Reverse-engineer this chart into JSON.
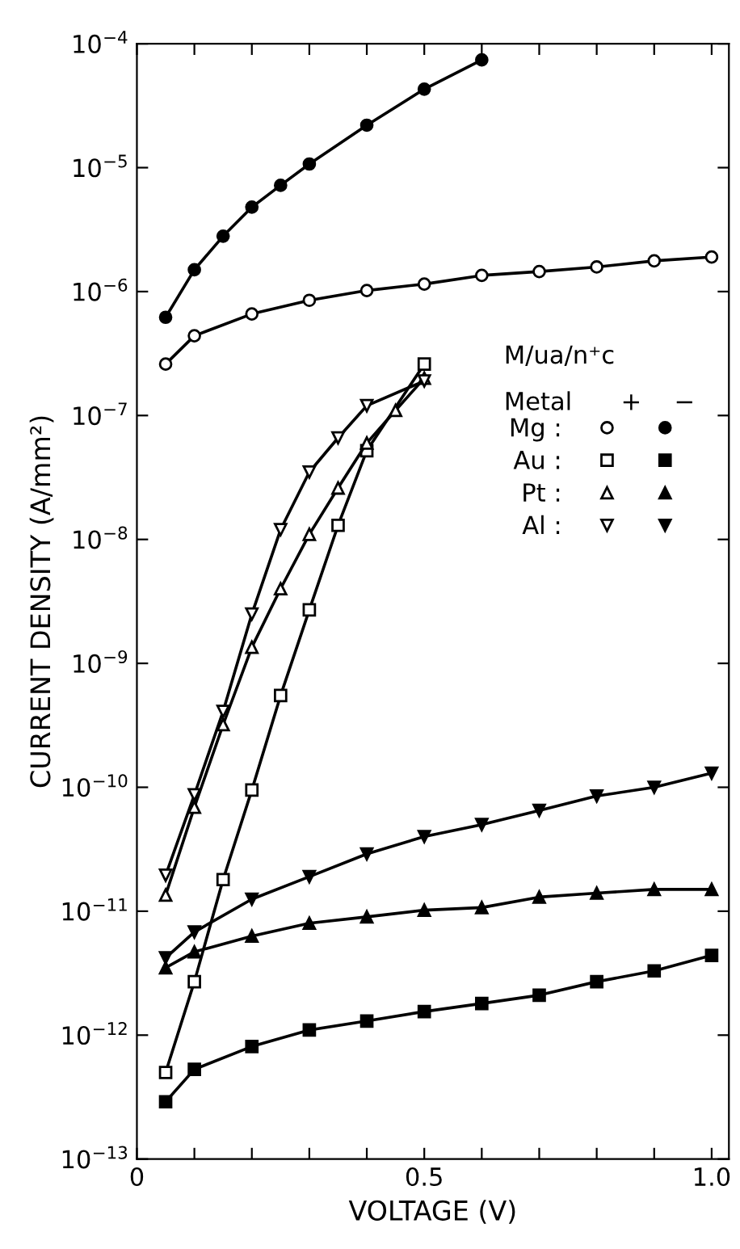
{
  "chart_data": {
    "type": "line",
    "xlabel": "VOLTAGE (V)",
    "ylabel": "CURRENT DENSITY (A/mm²)",
    "legend_title": "M/ua/n⁺c",
    "annotations": [
      "Metal",
      "+",
      "−"
    ],
    "log": "y",
    "xlim": [
      0,
      1.03
    ],
    "ylim": [
      1e-13,
      0.0001
    ],
    "xticks": [
      0,
      {
        "value": 0.1,
        "label": null
      },
      {
        "value": 0.2,
        "label": null
      },
      {
        "value": 0.3,
        "label": null
      },
      {
        "value": 0.4,
        "label": null
      },
      0.5,
      {
        "value": 0.6,
        "label": null
      },
      {
        "value": 0.7,
        "label": null
      },
      {
        "value": 0.8,
        "label": null
      },
      {
        "value": 0.9,
        "label": null
      },
      {
        "value": 1.0,
        "label": "1.0"
      }
    ],
    "yticks": [
      {
        "value": 1e-13,
        "label": "10$^{−13}$"
      },
      {
        "value": 1e-12,
        "label": "10$^{−12}$"
      },
      {
        "value": 1e-11,
        "label": "10$^{−11}$"
      },
      {
        "value": 1e-10,
        "label": "10$^{−10}$"
      },
      {
        "value": 1e-09,
        "label": "10$^{−9}$"
      },
      {
        "value": 1e-08,
        "label": "10$^{−8}$"
      },
      {
        "value": 1e-07,
        "label": "10$^{−7}$"
      },
      {
        "value": 1e-06,
        "label": "10$^{−6}$"
      },
      {
        "value": 1e-05,
        "label": "10$^{−5}$"
      },
      {
        "value": 0.0001,
        "label": "10$^{−4}$"
      }
    ],
    "grid": false,
    "legend": "right",
    "line_style": "solid",
    "series": [
      {
        "name": "Mg :",
        "color": "#000000",
        "marker": "circle-open",
        "x": [
          0.05,
          0.1,
          0.2,
          0.3,
          0.4,
          0.5,
          0.6,
          0.7,
          0.8,
          0.9,
          1.0
        ],
        "values": [
          2.6e-07,
          4.4e-07,
          6.6e-07,
          8.5e-07,
          1.02e-06,
          1.15e-06,
          1.35e-06,
          1.45e-06,
          1.58e-06,
          1.77e-06,
          1.9e-06
        ]
      },
      {
        "color": "#000000",
        "marker": "circle",
        "x": [
          0.05,
          0.1,
          0.15,
          0.2,
          0.25,
          0.3,
          0.4,
          0.5,
          0.6
        ],
        "values": [
          6.2e-07,
          1.5e-06,
          2.8e-06,
          4.8e-06,
          7.2e-06,
          1.07e-05,
          2.2e-05,
          4.3e-05,
          7.4e-05
        ]
      },
      {
        "name": "Au :",
        "color": "#000000",
        "marker": "square-open",
        "x": [
          0.05,
          0.1,
          0.15,
          0.2,
          0.25,
          0.3,
          0.35,
          0.4,
          0.5
        ],
        "values": [
          5e-13,
          2.7e-12,
          1.8e-11,
          9.5e-11,
          5.5e-10,
          2.7e-09,
          1.3e-08,
          5.2e-08,
          2.6e-07
        ]
      },
      {
        "color": "#000000",
        "marker": "square",
        "x": [
          0.05,
          0.1,
          0.2,
          0.3,
          0.4,
          0.5,
          0.6,
          0.7,
          0.8,
          0.9,
          1.0
        ],
        "values": [
          2.9e-13,
          5.3e-13,
          8.1e-13,
          1.1e-12,
          1.3e-12,
          1.55e-12,
          1.8e-12,
          2.1e-12,
          2.7e-12,
          3.3e-12,
          4.4e-12
        ]
      },
      {
        "name": "Pt :",
        "color": "#000000",
        "marker": "triangle-open",
        "x": [
          0.05,
          0.1,
          0.15,
          0.2,
          0.25,
          0.3,
          0.35,
          0.4,
          0.45,
          0.5
        ],
        "values": [
          1.35e-11,
          6.9e-11,
          3.2e-10,
          1.35e-09,
          4e-09,
          1.1e-08,
          2.6e-08,
          6e-08,
          1.1e-07,
          2e-07
        ]
      },
      {
        "color": "#000000",
        "marker": "triangle",
        "x": [
          0.05,
          0.1,
          0.2,
          0.3,
          0.4,
          0.5,
          0.6,
          0.7,
          0.8,
          0.9,
          1.0
        ],
        "values": [
          3.5e-12,
          4.7e-12,
          6.3e-12,
          8e-12,
          9e-12,
          1.02e-11,
          1.07e-11,
          1.3e-11,
          1.4e-11,
          1.5e-11,
          1.5e-11
        ]
      },
      {
        "name": "Al :",
        "color": "#000000",
        "marker": "triangle_down-open",
        "x": [
          0.05,
          0.1,
          0.15,
          0.2,
          0.25,
          0.3,
          0.35,
          0.4,
          0.5
        ],
        "values": [
          1.95e-11,
          8.7e-11,
          4.1e-10,
          2.5e-09,
          1.2e-08,
          3.5e-08,
          6.6e-08,
          1.2e-07,
          1.9e-07
        ]
      },
      {
        "color": "#000000",
        "marker": "triangle_down",
        "x": [
          0.05,
          0.1,
          0.2,
          0.3,
          0.4,
          0.5,
          0.6,
          0.7,
          0.8,
          0.9,
          1.0
        ],
        "values": [
          4.2e-12,
          6.8e-12,
          1.25e-11,
          1.9e-11,
          2.9e-11,
          4e-11,
          5e-11,
          6.5e-11,
          8.5e-11,
          1e-10,
          1.3e-10
        ]
      }
    ]
  }
}
